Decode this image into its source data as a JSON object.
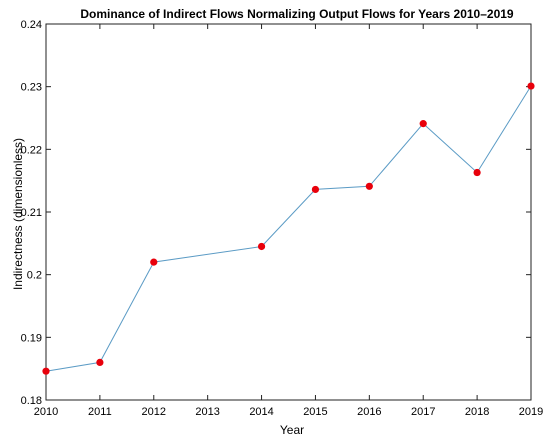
{
  "chart_data": {
    "type": "line",
    "title": "Dominance of Indirect Flows Normalizing Output Flows for Years 2010–2019",
    "xlabel": "Year",
    "ylabel": "Indirectness (dimensionless)",
    "x_ticks": [
      "2010",
      "2011",
      "2012",
      "2013",
      "2014",
      "2015",
      "2016",
      "2017",
      "2018",
      "2019"
    ],
    "y_ticks": [
      "0.18",
      "0.19",
      "0.2",
      "0.21",
      "0.22",
      "0.23",
      "0.24"
    ],
    "ylim": [
      0.18,
      0.24
    ],
    "grid": false,
    "series": [
      {
        "x": [
          "2010",
          "2011",
          "2012",
          "2014",
          "2015",
          "2016",
          "2017",
          "2018",
          "2019"
        ],
        "values": [
          0.1846,
          0.186,
          0.202,
          0.2045,
          0.2136,
          0.2141,
          0.2241,
          0.2163,
          0.2301
        ],
        "line_color": "#5b9bc5",
        "marker_color": "#e8000b"
      }
    ]
  }
}
